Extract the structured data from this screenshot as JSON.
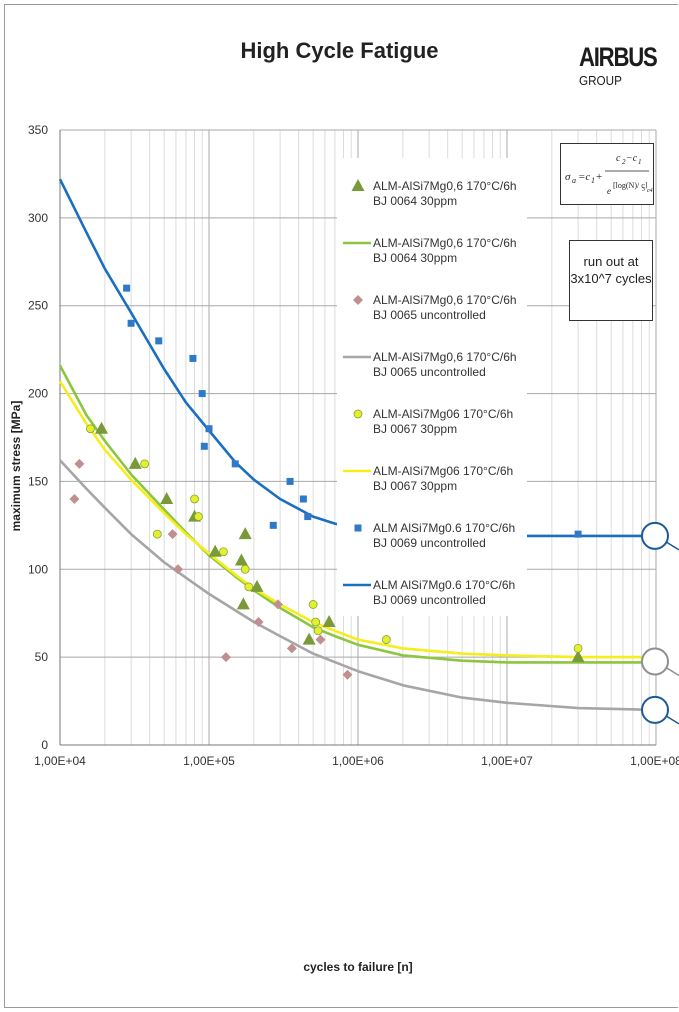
{
  "title": "High Cycle Fatigue",
  "logo": {
    "main": "AIRBUS",
    "sub": "GROUP"
  },
  "runout_note": {
    "line1": "run out at",
    "line2": "3x10^7 cycles"
  },
  "formula": {
    "label": "σa = c1 + (c2 − c1) / e^((log(N)/c3)^c4)"
  },
  "chart_data": {
    "type": "scatter",
    "title": "High Cycle Fatigue",
    "xlabel": "cycles to failure [n]",
    "ylabel": "maximum stress [MPa]",
    "xscale": "log",
    "xlim": [
      10000,
      100000000
    ],
    "ylim": [
      0,
      350
    ],
    "x_ticks": [
      "1,00E+04",
      "1,00E+05",
      "1,00E+06",
      "1,00E+07",
      "1,00E+08"
    ],
    "y_ticks": [
      "0",
      "50",
      "100",
      "150",
      "200",
      "250",
      "300",
      "350"
    ],
    "grid": true,
    "legend_position": "top-right",
    "series": [
      {
        "name": "ALM-AlSi7Mg0,6  170°C/6h BJ 0064 30ppm",
        "kind": "points",
        "marker": "triangle",
        "color": "#7a9a3a",
        "points": [
          [
            19000,
            180
          ],
          [
            32000,
            160
          ],
          [
            52000,
            140
          ],
          [
            80000,
            130
          ],
          [
            110000,
            110
          ],
          [
            165000,
            105
          ],
          [
            170000,
            80
          ],
          [
            175000,
            120
          ],
          [
            210000,
            90
          ],
          [
            470000,
            60
          ],
          [
            640000,
            70
          ],
          [
            30000000,
            50
          ]
        ]
      },
      {
        "name": "ALM-AlSi7Mg0,6  170°C/6h BJ 0064 30ppm",
        "kind": "curve",
        "color": "#8cc63f",
        "points": [
          [
            10000,
            216
          ],
          [
            15000,
            188
          ],
          [
            20000,
            173
          ],
          [
            30000,
            154
          ],
          [
            50000,
            134
          ],
          [
            70000,
            121
          ],
          [
            100000,
            108
          ],
          [
            150000,
            96
          ],
          [
            200000,
            88
          ],
          [
            300000,
            78
          ],
          [
            500000,
            67
          ],
          [
            700000,
            62
          ],
          [
            1000000,
            57
          ],
          [
            2000000,
            51
          ],
          [
            5000000,
            48
          ],
          [
            10000000,
            47
          ],
          [
            30000000,
            47
          ],
          [
            100000000,
            47
          ]
        ]
      },
      {
        "name": "ALM-AlSi7Mg0,6 170°C/6h BJ 0065 uncontrolled",
        "kind": "points",
        "marker": "diamond",
        "color": "#c09090",
        "points": [
          [
            12500,
            140
          ],
          [
            13500,
            160
          ],
          [
            57000,
            120
          ],
          [
            62000,
            100
          ],
          [
            130000,
            50
          ],
          [
            215000,
            70
          ],
          [
            290000,
            80
          ],
          [
            360000,
            55
          ],
          [
            560000,
            60
          ],
          [
            850000,
            40
          ]
        ]
      },
      {
        "name": "ALM-AlSi7Mg0,6 170°C/6h BJ 0065 uncontrolled",
        "kind": "curve",
        "color": "#a6a6a6",
        "points": [
          [
            10000,
            162
          ],
          [
            15000,
            146
          ],
          [
            20000,
            135
          ],
          [
            30000,
            120
          ],
          [
            50000,
            104
          ],
          [
            100000,
            86
          ],
          [
            200000,
            70
          ],
          [
            300000,
            62
          ],
          [
            500000,
            52
          ],
          [
            1000000,
            42
          ],
          [
            2000000,
            34
          ],
          [
            5000000,
            27
          ],
          [
            10000000,
            24
          ],
          [
            30000000,
            21
          ],
          [
            100000000,
            20
          ]
        ]
      },
      {
        "name": "ALM-AlSi7Mg06 170°C/6h BJ 0067 30ppm",
        "kind": "points",
        "marker": "circle",
        "color": "#e6f02a",
        "points": [
          [
            16000,
            180
          ],
          [
            37000,
            160
          ],
          [
            45000,
            120
          ],
          [
            80000,
            140
          ],
          [
            85000,
            130
          ],
          [
            125000,
            110
          ],
          [
            175000,
            100
          ],
          [
            185000,
            90
          ],
          [
            500000,
            80
          ],
          [
            520000,
            70
          ],
          [
            540000,
            65
          ],
          [
            1550000,
            60
          ],
          [
            30000000,
            55
          ]
        ]
      },
      {
        "name": "ALM-AlSi7Mg06 170°C/6h BJ 0067 30ppm",
        "kind": "curve",
        "color": "#f5ed1c",
        "points": [
          [
            10000,
            207
          ],
          [
            15000,
            183
          ],
          [
            20000,
            168
          ],
          [
            30000,
            151
          ],
          [
            50000,
            132
          ],
          [
            70000,
            120
          ],
          [
            100000,
            109
          ],
          [
            150000,
            97
          ],
          [
            200000,
            89
          ],
          [
            300000,
            80
          ],
          [
            500000,
            70
          ],
          [
            700000,
            65
          ],
          [
            1000000,
            60
          ],
          [
            2000000,
            55
          ],
          [
            5000000,
            52
          ],
          [
            10000000,
            51
          ],
          [
            30000000,
            50
          ],
          [
            100000000,
            50
          ]
        ]
      },
      {
        "name": "ALM AlSi7Mg0.6  170°C/6h BJ 0069 uncontrolled",
        "kind": "points",
        "marker": "square",
        "color": "#2f7ac8",
        "points": [
          [
            28000,
            260
          ],
          [
            30000,
            240
          ],
          [
            46000,
            230
          ],
          [
            78000,
            220
          ],
          [
            90000,
            200
          ],
          [
            93000,
            170
          ],
          [
            100000,
            180
          ],
          [
            150000,
            160
          ],
          [
            270000,
            125
          ],
          [
            350000,
            150
          ],
          [
            430000,
            140
          ],
          [
            460000,
            130
          ],
          [
            30000000,
            120
          ]
        ]
      },
      {
        "name": "ALM AlSi7Mg0.6  170°C/6h BJ 0069 uncontrolled",
        "kind": "curve",
        "color": "#1a6fc0",
        "points": [
          [
            10000,
            322
          ],
          [
            15000,
            292
          ],
          [
            20000,
            271
          ],
          [
            30000,
            246
          ],
          [
            50000,
            214
          ],
          [
            70000,
            195
          ],
          [
            100000,
            179
          ],
          [
            150000,
            161
          ],
          [
            200000,
            151
          ],
          [
            300000,
            140
          ],
          [
            500000,
            130
          ],
          [
            700000,
            126
          ],
          [
            1000000,
            123
          ],
          [
            2000000,
            120
          ],
          [
            5000000,
            119
          ],
          [
            10000000,
            119
          ],
          [
            30000000,
            119
          ],
          [
            100000000,
            119
          ]
        ]
      }
    ]
  }
}
